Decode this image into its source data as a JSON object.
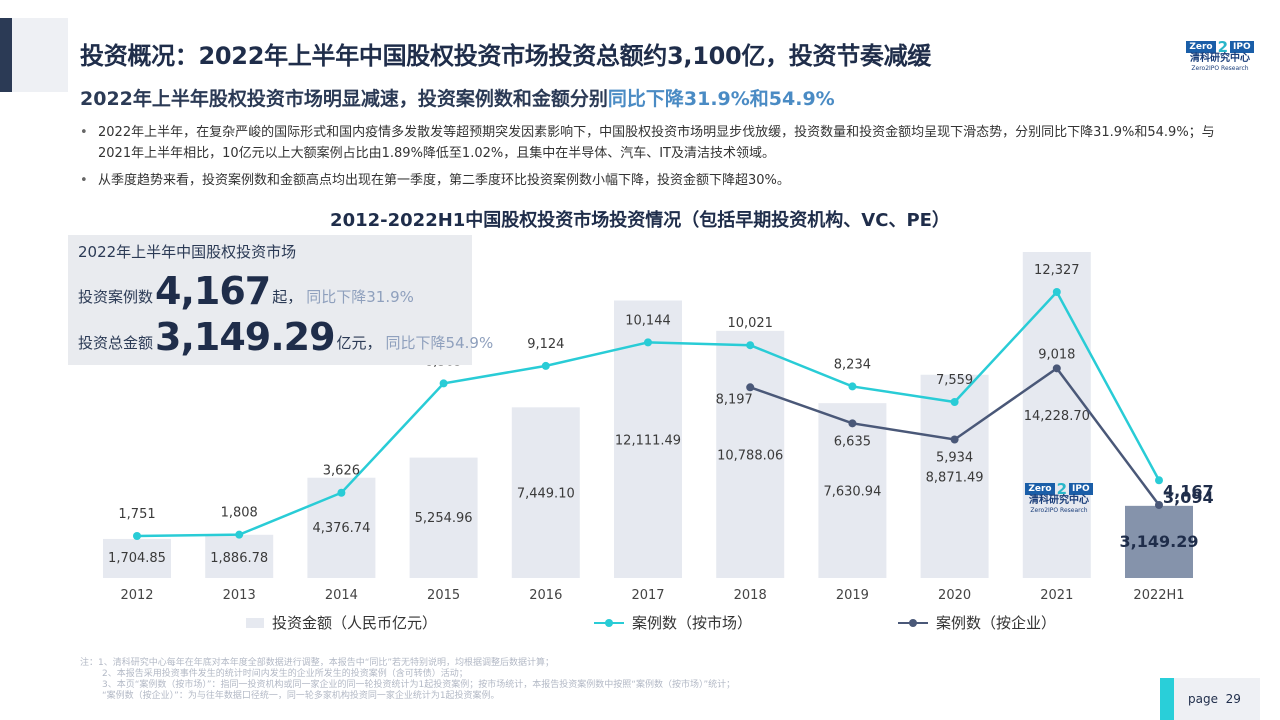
{
  "header": {
    "title": "投资概况：2022年上半年中国股权投资市场投资总额约3,100亿，投资节奏减缓",
    "subtitle_main": "2022年上半年股权投资市场明显减速，投资案例数和金额分别",
    "subtitle_highlight": "同比下降31.9%和54.9%"
  },
  "logo": {
    "top": "Zero",
    "two": "2",
    "ipo": "IPO",
    "cn": "清科研究中心",
    "en": "Zero2IPO Research"
  },
  "bullets": [
    "2022年上半年，在复杂严峻的国际形式和国内疫情多发散发等超预期突发因素影响下，中国股权投资市场明显步伐放缓，投资数量和投资金额均呈现下滑态势，分别同比下降31.9%和54.9%；与2021年上半年相比，10亿元以上大额案例占比由1.89%降低至1.02%，且集中在半导体、汽车、IT及清洁技术领域。",
    "从季度趋势来看，投资案例数和金额高点均出现在第一季度，第二季度环比投资案例数小幅下降，投资金额下降超30%。"
  ],
  "infobox": {
    "heading": "2022年上半年中国股权投资市场",
    "row1_prefix": "投资案例数",
    "row1_value": "4,167",
    "row1_unit": "起，",
    "row1_yoy": "同比下降31.9%",
    "row2_prefix": "投资总金额",
    "row2_value": "3,149.29",
    "row2_unit": "亿元，",
    "row2_yoy": "同比下降54.9%"
  },
  "chart_data": {
    "type": "bar+line",
    "title": "2012-2022H1中国股权投资市场投资情况（包括早期投资机构、VC、PE）",
    "categories": [
      "2012",
      "2013",
      "2014",
      "2015",
      "2016",
      "2017",
      "2018",
      "2019",
      "2020",
      "2021",
      "2022H1"
    ],
    "bars": {
      "name": "投资金额（人民币亿元）",
      "values": [
        1704.85,
        1886.78,
        4376.74,
        5254.96,
        7449.1,
        12111.49,
        10788.06,
        7630.94,
        8871.49,
        14228.7,
        3149.29
      ],
      "labels": [
        "1,704.85",
        "1,886.78",
        "4,376.74",
        "5,254.96",
        "7,449.10",
        "12,111.49",
        "10,788.06",
        "7,630.94",
        "8,871.49",
        "14,228.70",
        "3,149.29"
      ],
      "color": "#e6e9f0",
      "highlight_color": "#8593ab"
    },
    "series": [
      {
        "name": "案例数（按市场）",
        "color": "#29ccd6",
        "values": [
          1751,
          1808,
          3626,
          8365,
          9124,
          10144,
          10021,
          8234,
          7559,
          12327,
          4167
        ],
        "labels": [
          "1,751",
          "1,808",
          "3,626",
          "8,365",
          "9,124",
          "10,144",
          "10,021",
          "8,234",
          "7,559",
          "12,327",
          "4,167"
        ]
      },
      {
        "name": "案例数（按企业）",
        "color": "#4a5878",
        "values": [
          null,
          null,
          null,
          null,
          null,
          null,
          8197,
          6635,
          5934,
          9018,
          3094
        ],
        "labels": [
          "",
          "",
          "",
          "",
          "",
          "",
          "8,197",
          "6,635",
          "5,934",
          "9,018",
          "3,094"
        ]
      }
    ]
  },
  "watermark_logo": {
    "top": "Zero",
    "two": "2",
    "ipo": "IPO",
    "cn": "清科研究中心",
    "en": "Zero2IPO Research"
  },
  "notes": {
    "line1": "注：1、清科研究中心每年在年底对本年度全部数据进行调整，本报告中“同比”若无特别说明，均根据调整后数据计算；",
    "line2": "2、本报告采用投资事件发生的统计时间内发生的企业所发生的投资案例（含可转债）活动；",
    "line3": "3、本页“案例数（按市场）”：指同一投资机构或同一家企业的同一轮投资统计为1起投资案例；按市场统计，本报告投资案例数中按照“案例数（按市场）”统计；",
    "line4": "“案例数（按企业）”：为与往年数据口径统一，同一轮多家机构投资同一家企业统计为1起投资案例。"
  },
  "page": {
    "label": "page",
    "number": "29"
  }
}
